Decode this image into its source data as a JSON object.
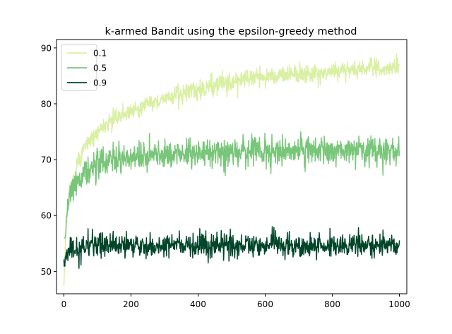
{
  "chart_data": {
    "type": "line",
    "title": "k-armed Bandit using the epsilon-greedy method",
    "xlabel": "",
    "ylabel": "",
    "xlim": [
      -22,
      1022
    ],
    "ylim": [
      46,
      91.5
    ],
    "xticks": [
      0,
      200,
      400,
      600,
      800,
      1000
    ],
    "yticks": [
      50,
      60,
      70,
      80,
      90
    ],
    "grid": false,
    "legend_position": "top-left",
    "x": {
      "start": 0,
      "end": 1000,
      "step": 1
    },
    "series": [
      {
        "name": "0.1",
        "color": "#d9f0a3",
        "trend_points": [
          [
            0,
            47.5
          ],
          [
            5,
            56
          ],
          [
            10,
            61
          ],
          [
            20,
            65
          ],
          [
            40,
            69.5
          ],
          [
            60,
            72
          ],
          [
            100,
            75
          ],
          [
            150,
            77.3
          ],
          [
            200,
            78.8
          ],
          [
            250,
            79.9
          ],
          [
            300,
            80.9
          ],
          [
            350,
            81.8
          ],
          [
            400,
            82.6
          ],
          [
            450,
            83.3
          ],
          [
            500,
            83.9
          ],
          [
            550,
            84.4
          ],
          [
            600,
            84.8
          ],
          [
            700,
            85.4
          ],
          [
            800,
            85.8
          ],
          [
            900,
            86.2
          ],
          [
            1000,
            86.4
          ]
        ],
        "noise_amplitude": 1.3,
        "observed_max": 89.2,
        "observed_min": 47.3
      },
      {
        "name": "0.5",
        "color": "#78c679",
        "trend_points": [
          [
            0,
            52
          ],
          [
            5,
            57
          ],
          [
            10,
            61
          ],
          [
            20,
            64.5
          ],
          [
            40,
            66.5
          ],
          [
            60,
            67.8
          ],
          [
            100,
            69
          ],
          [
            150,
            69.8
          ],
          [
            200,
            70.4
          ],
          [
            300,
            70.9
          ],
          [
            400,
            71.2
          ],
          [
            500,
            71.4
          ],
          [
            700,
            71.6
          ],
          [
            1000,
            71.8
          ]
        ],
        "noise_amplitude": 2.1,
        "observed_max": 77.7,
        "observed_min": 56.0
      },
      {
        "name": "0.9",
        "color": "#004529",
        "trend_points": [
          [
            0,
            52
          ],
          [
            5,
            52.8
          ],
          [
            20,
            54
          ],
          [
            100,
            54.6
          ],
          [
            1000,
            54.8
          ]
        ],
        "noise_amplitude": 1.7,
        "observed_max": 60.0,
        "observed_min": 48.6
      }
    ]
  }
}
